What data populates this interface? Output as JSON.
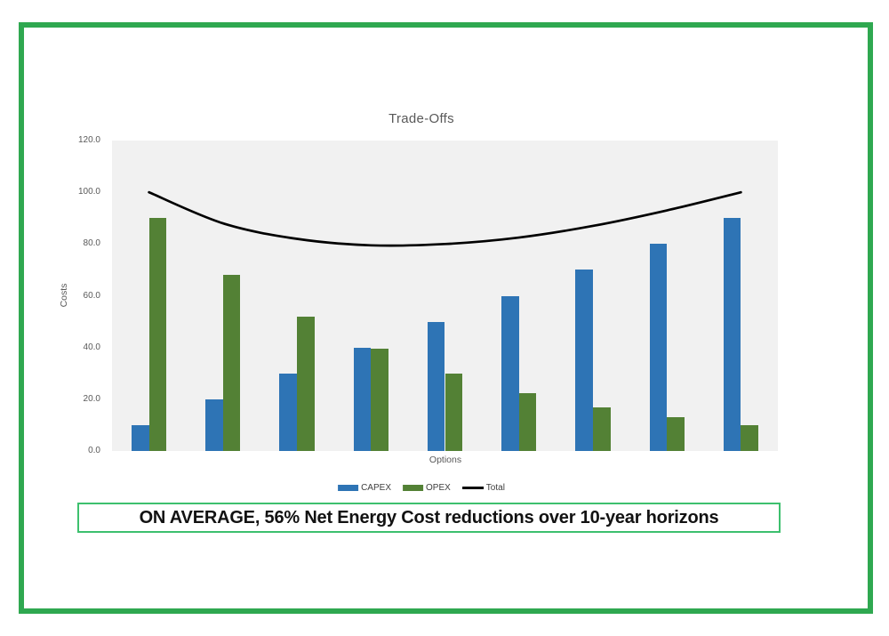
{
  "frame": {
    "border_color": "#2fa850"
  },
  "chart_data": {
    "type": "bar",
    "title": "Trade-Offs",
    "xlabel": "Options",
    "ylabel": "Costs",
    "ylim": [
      0,
      120
    ],
    "yticks": [
      0,
      20,
      40,
      60,
      80,
      100,
      120
    ],
    "ytick_labels": [
      "0.0",
      "20.0",
      "40.0",
      "60.0",
      "80.0",
      "100.0",
      "120.0"
    ],
    "grid": false,
    "legend_position": "bottom",
    "plot_background": "#f1f1f1",
    "axis_text_color": "#595959",
    "title_color": "#595959",
    "legend_text_color": "#3d3d3d",
    "series": [
      {
        "name": "CAPEX",
        "type": "bar",
        "color": "#2e74b5",
        "values": [
          10,
          20,
          30,
          40,
          50,
          60,
          70,
          80,
          90
        ]
      },
      {
        "name": "OPEX",
        "type": "bar",
        "color": "#538135",
        "values": [
          90,
          68,
          52,
          39.5,
          30,
          22.5,
          17,
          13,
          10
        ]
      },
      {
        "name": "Total",
        "type": "line",
        "color": "#000000",
        "values": [
          100,
          88,
          82,
          79.5,
          80,
          82.5,
          87,
          93,
          100
        ]
      }
    ]
  },
  "caption": {
    "text": "ON AVERAGE, 56% Net Energy Cost reductions over 10-year horizons",
    "border_color": "#3dc06e"
  }
}
